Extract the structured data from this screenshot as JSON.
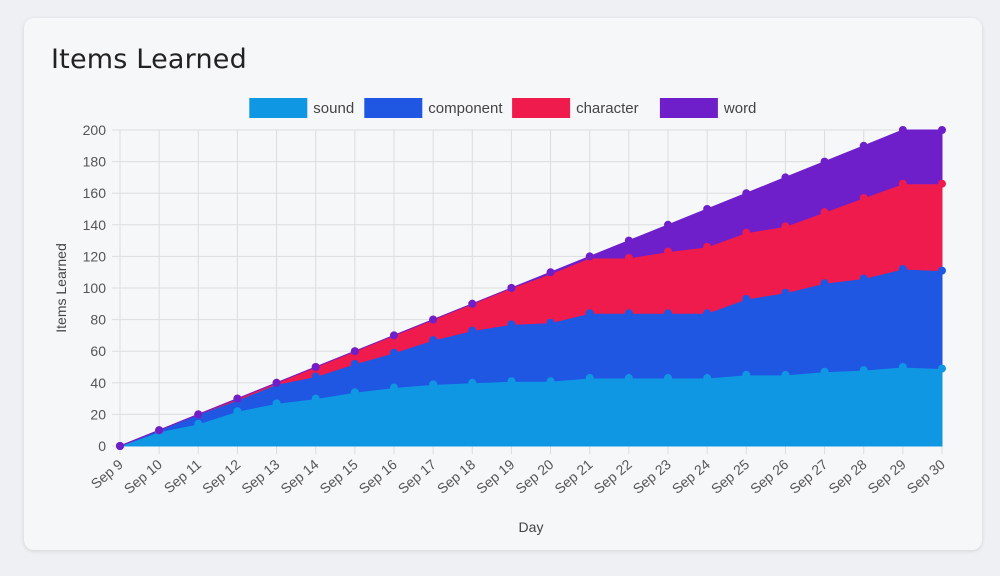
{
  "card": {
    "title": "Items Learned"
  },
  "chart_data": {
    "type": "area",
    "stacked": true,
    "title": "",
    "xlabel": "Day",
    "ylabel": "Items Learned",
    "ylim": [
      0,
      200
    ],
    "y_ticks": [
      0,
      20,
      40,
      60,
      80,
      100,
      120,
      140,
      160,
      180,
      200
    ],
    "grid": true,
    "legend_position": "top",
    "categories": [
      "Sep 9",
      "Sep 10",
      "Sep 11",
      "Sep 12",
      "Sep 13",
      "Sep 14",
      "Sep 15",
      "Sep 16",
      "Sep 17",
      "Sep 18",
      "Sep 19",
      "Sep 20",
      "Sep 21",
      "Sep 22",
      "Sep 23",
      "Sep 24",
      "Sep 25",
      "Sep 26",
      "Sep 27",
      "Sep 28",
      "Sep 29",
      "Sep 30"
    ],
    "series": [
      {
        "name": "sound",
        "color": "#1097e3",
        "values": [
          0,
          9,
          14,
          22,
          27,
          30,
          34,
          37,
          39,
          40,
          41,
          41,
          43,
          43,
          43,
          43,
          45,
          45,
          47,
          48,
          50,
          49
        ]
      },
      {
        "name": "component",
        "color": "#1f57e3",
        "values": [
          0,
          1,
          6,
          7,
          12,
          14,
          18,
          22,
          28,
          33,
          36,
          37,
          41,
          41,
          41,
          41,
          48,
          52,
          56,
          58,
          62,
          62
        ]
      },
      {
        "name": "character",
        "color": "#f01b4d",
        "values": [
          0,
          0,
          0,
          1,
          1,
          6,
          8,
          11,
          13,
          17,
          23,
          31,
          35,
          35,
          39,
          42,
          42,
          42,
          45,
          51,
          54,
          55
        ]
      },
      {
        "name": "word",
        "color": "#6e1fca",
        "values": [
          0,
          0,
          0,
          0,
          0,
          0,
          0,
          0,
          0,
          0,
          0,
          1,
          1,
          11,
          17,
          24,
          25,
          31,
          32,
          33,
          34,
          34
        ]
      }
    ]
  }
}
